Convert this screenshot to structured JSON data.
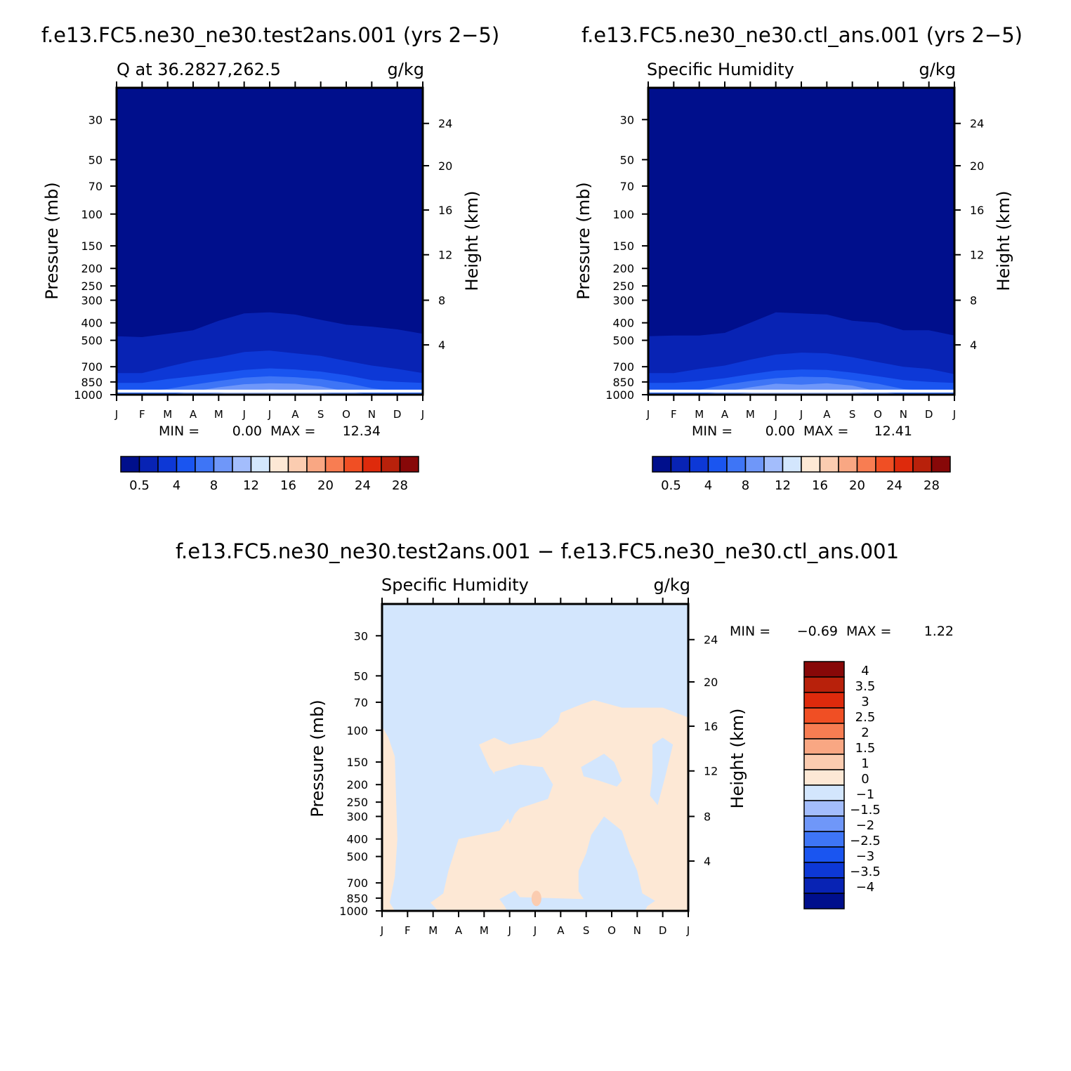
{
  "colors": {
    "abs_palette": [
      "#000f8c",
      "#0823b4",
      "#0d38d6",
      "#1a55f0",
      "#3e75f6",
      "#6f97f9",
      "#a3bdfc",
      "#d3e6fd",
      "#fde8d5",
      "#fbccb0",
      "#f9a783",
      "#f87d52",
      "#f04f24",
      "#de2a0c",
      "#b8210b",
      "#870808"
    ],
    "diff_palette": [
      "#000f8c",
      "#0823b4",
      "#0d38d6",
      "#1a55f0",
      "#3e75f6",
      "#6f97f9",
      "#a3bdfc",
      "#d3e6fd",
      "#fde8d5",
      "#fbccb0",
      "#f9a783",
      "#f87d52",
      "#f04f24",
      "#de2a0c",
      "#b8210b",
      "#870808"
    ],
    "white_line": "#ffffff"
  },
  "page_titles": {
    "left": "f.e13.FC5.ne30_ne30.test2ans.001 (yrs 2−5)",
    "right": "f.e13.FC5.ne30_ne30.ctl_ans.001 (yrs 2−5)",
    "bottom": "f.e13.FC5.ne30_ne30.test2ans.001 − f.e13.FC5.ne30_ne30.ctl_ans.001"
  },
  "chart_data": [
    {
      "id": "test",
      "type": "heatmap",
      "left_title": "Q at 36.2827,262.5",
      "right_title": "g/kg",
      "ylabel": "Pressure (mb)",
      "ylabel_right": "Height (km)",
      "x_ticks": [
        "J",
        "F",
        "M",
        "A",
        "M",
        "J",
        "J",
        "A",
        "S",
        "O",
        "N",
        "D",
        "J"
      ],
      "y_ticks": [
        "30",
        "50",
        "70",
        "100",
        "150",
        "200",
        "250",
        "300",
        "400",
        "500",
        "700",
        "850",
        "1000"
      ],
      "y_values": [
        30,
        50,
        70,
        100,
        150,
        200,
        250,
        300,
        400,
        500,
        700,
        850,
        1000
      ],
      "ylim": [
        20,
        1000
      ],
      "height_ticks": [
        "24",
        "20",
        "16",
        "12",
        "8",
        "4"
      ],
      "height_values": [
        24,
        20,
        16,
        12,
        8,
        4
      ],
      "min_label": "MIN =",
      "min_value": "0.00",
      "max_label": "MAX =",
      "max_value": "12.34",
      "colorbar_labels": [
        "0.5",
        "4",
        "8",
        "12",
        "16",
        "20",
        "24",
        "28"
      ],
      "colorbar_label_index": [
        1,
        3,
        5,
        7,
        9,
        11,
        13,
        15
      ],
      "contour_levels_mb": {
        "level_1": [
          475,
          480,
          460,
          440,
          390,
          355,
          350,
          360,
          385,
          410,
          420,
          435,
          460
        ],
        "level_2": [
          760,
          760,
          700,
          650,
          620,
          580,
          570,
          590,
          610,
          650,
          690,
          720,
          760
        ],
        "level_3": [
          860,
          860,
          820,
          790,
          760,
          730,
          715,
          725,
          745,
          780,
          830,
          850,
          860
        ],
        "level_4": [
          960,
          960,
          930,
          880,
          840,
          805,
          790,
          800,
          820,
          860,
          920,
          960,
          960
        ],
        "level_5": [
          1000,
          1000,
          1000,
          960,
          910,
          875,
          865,
          870,
          900,
          960,
          1000,
          1000,
          1000
        ],
        "level_6": [
          1000,
          1000,
          1000,
          1000,
          980,
          950,
          935,
          945,
          975,
          1000,
          1000,
          1000,
          1000
        ],
        "level_7": [
          1000,
          1000,
          1000,
          1000,
          1000,
          990,
          985,
          990,
          1000,
          1000,
          1000,
          1000,
          1000
        ]
      }
    },
    {
      "id": "ctl",
      "type": "heatmap",
      "left_title": "Specific Humidity",
      "right_title": "g/kg",
      "ylabel": "Pressure (mb)",
      "ylabel_right": "Height (km)",
      "x_ticks": [
        "J",
        "F",
        "M",
        "A",
        "M",
        "J",
        "J",
        "A",
        "S",
        "O",
        "N",
        "D",
        "J"
      ],
      "y_ticks": [
        "30",
        "50",
        "70",
        "100",
        "150",
        "200",
        "250",
        "300",
        "400",
        "500",
        "700",
        "850",
        "1000"
      ],
      "y_values": [
        30,
        50,
        70,
        100,
        150,
        200,
        250,
        300,
        400,
        500,
        700,
        850,
        1000
      ],
      "ylim": [
        20,
        1000
      ],
      "height_ticks": [
        "24",
        "20",
        "16",
        "12",
        "8",
        "4"
      ],
      "height_values": [
        24,
        20,
        16,
        12,
        8,
        4
      ],
      "min_label": "MIN =",
      "min_value": "0.00",
      "max_label": "MAX =",
      "max_value": "12.41",
      "colorbar_labels": [
        "0.5",
        "4",
        "8",
        "12",
        "16",
        "20",
        "24",
        "28"
      ],
      "colorbar_label_index": [
        1,
        3,
        5,
        7,
        9,
        11,
        13,
        15
      ],
      "contour_levels_mb": {
        "level_1": [
          475,
          470,
          470,
          455,
          400,
          350,
          355,
          360,
          390,
          400,
          440,
          440,
          470
        ],
        "level_2": [
          760,
          760,
          720,
          690,
          640,
          600,
          585,
          590,
          620,
          660,
          700,
          720,
          770
        ],
        "level_3": [
          860,
          860,
          840,
          810,
          770,
          735,
          725,
          730,
          755,
          790,
          830,
          850,
          860
        ],
        "level_4": [
          960,
          960,
          940,
          880,
          840,
          810,
          795,
          800,
          830,
          870,
          930,
          960,
          960
        ],
        "level_5": [
          1000,
          1000,
          1000,
          960,
          910,
          870,
          880,
          865,
          890,
          960,
          1000,
          1000,
          1000
        ],
        "level_6": [
          1000,
          1000,
          1000,
          1000,
          975,
          945,
          960,
          940,
          975,
          1000,
          1000,
          1000,
          1000
        ],
        "level_7": [
          1000,
          1000,
          1000,
          1000,
          1000,
          988,
          1000,
          990,
          1000,
          1000,
          1000,
          1000,
          1000
        ]
      }
    },
    {
      "id": "diff",
      "type": "heatmap",
      "left_title": "Specific Humidity",
      "right_title": "g/kg",
      "ylabel": "Pressure (mb)",
      "ylabel_right": "Height (km)",
      "x_ticks": [
        "J",
        "F",
        "M",
        "A",
        "M",
        "J",
        "J",
        "A",
        "S",
        "O",
        "N",
        "D",
        "J"
      ],
      "y_ticks": [
        "30",
        "50",
        "70",
        "100",
        "150",
        "200",
        "250",
        "300",
        "400",
        "500",
        "700",
        "850",
        "1000"
      ],
      "y_values": [
        30,
        50,
        70,
        100,
        150,
        200,
        250,
        300,
        400,
        500,
        700,
        850,
        1000
      ],
      "ylim": [
        20,
        1000
      ],
      "height_ticks": [
        "24",
        "20",
        "16",
        "12",
        "8",
        "4"
      ],
      "height_values": [
        24,
        20,
        16,
        12,
        8,
        4
      ],
      "min_label": "MIN =",
      "min_value": "−0.69",
      "max_label": "MAX =",
      "max_value": "1.22",
      "colorbar_labels": [
        "4",
        "3.5",
        "3",
        "2.5",
        "2",
        "1.5",
        "1",
        "0",
        "−1",
        "−1.5",
        "−2",
        "−2.5",
        "−3",
        "−3.5",
        "−4"
      ],
      "positive_regions_note": "light orange (0 to 1) regions",
      "region_positive_main": [
        [
          0,
          95
        ],
        [
          0.25,
          110
        ],
        [
          0.5,
          140
        ],
        [
          0.6,
          400
        ],
        [
          0.5,
          650
        ],
        [
          0.3,
          900
        ],
        [
          0.5,
          1000
        ],
        [
          2.2,
          1000
        ],
        [
          1.9,
          900
        ],
        [
          2.4,
          800
        ],
        [
          2.6,
          600
        ],
        [
          3.0,
          400
        ],
        [
          4.6,
          360
        ],
        [
          5.0,
          300
        ],
        [
          4.7,
          200
        ],
        [
          4.2,
          160
        ],
        [
          3.8,
          120
        ],
        [
          4.4,
          110
        ],
        [
          5.0,
          120
        ],
        [
          6.2,
          110
        ],
        [
          6.9,
          90
        ],
        [
          7.0,
          80
        ],
        [
          7.8,
          72
        ],
        [
          8.3,
          68
        ],
        [
          9.4,
          75
        ],
        [
          11.0,
          75
        ],
        [
          12.0,
          85
        ],
        [
          12.0,
          1000
        ],
        [
          10.3,
          1000
        ],
        [
          10.4,
          940
        ],
        [
          10.7,
          880
        ],
        [
          10.2,
          800
        ],
        [
          10.0,
          600
        ],
        [
          9.7,
          480
        ],
        [
          9.4,
          360
        ],
        [
          8.7,
          300
        ],
        [
          8.2,
          380
        ],
        [
          8.0,
          480
        ],
        [
          7.7,
          600
        ],
        [
          7.7,
          780
        ],
        [
          7.9,
          860
        ],
        [
          5.4,
          840
        ],
        [
          4.9,
          680
        ],
        [
          4.9,
          540
        ],
        [
          5.0,
          430
        ],
        [
          6.2,
          390
        ],
        [
          7.0,
          430
        ],
        [
          7.7,
          500
        ],
        [
          7.3,
          560
        ],
        [
          6.8,
          520
        ],
        [
          6.9,
          580
        ],
        [
          7.1,
          650
        ],
        [
          5.6,
          720
        ],
        [
          5.0,
          800
        ],
        [
          4.6,
          860
        ],
        [
          4.8,
          940
        ],
        [
          4.9,
          1000
        ],
        [
          2.2,
          1000
        ],
        [
          2.2,
          1000
        ],
        [
          0,
          1000
        ]
      ],
      "region_negative_patches": [
        [
          [
            4.4,
            170
          ],
          [
            5.4,
            155
          ],
          [
            6.3,
            160
          ],
          [
            6.7,
            200
          ],
          [
            6.5,
            240
          ],
          [
            5.4,
            270
          ],
          [
            5.2,
            290
          ],
          [
            5.0,
            330
          ],
          [
            4.8,
            260
          ],
          [
            4.5,
            210
          ]
        ],
        [
          [
            7.8,
            160
          ],
          [
            8.7,
            135
          ],
          [
            9.1,
            150
          ],
          [
            9.4,
            190
          ],
          [
            9.2,
            205
          ],
          [
            8.5,
            190
          ],
          [
            7.9,
            180
          ]
        ],
        [
          [
            10.6,
            120
          ],
          [
            11.0,
            110
          ],
          [
            11.4,
            120
          ],
          [
            11.1,
            180
          ],
          [
            10.8,
            260
          ],
          [
            10.5,
            230
          ],
          [
            10.6,
            170
          ]
        ]
      ],
      "region_positive_dot": [
        6.05,
        900
      ]
    }
  ]
}
